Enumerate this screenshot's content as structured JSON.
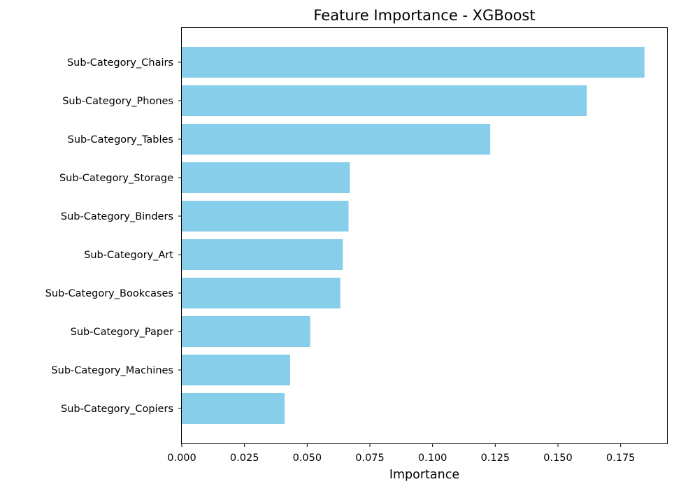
{
  "chart_data": {
    "type": "bar",
    "orientation": "horizontal",
    "title": "Feature Importance - XGBoost",
    "xlabel": "Importance",
    "ylabel": "",
    "xlim": [
      0.0,
      0.1935
    ],
    "grid": false,
    "legend": "none",
    "bar_color": "#87CEEB",
    "categories": [
      "Sub-Category_Chairs",
      "Sub-Category_Phones",
      "Sub-Category_Tables",
      "Sub-Category_Storage",
      "Sub-Category_Binders",
      "Sub-Category_Art",
      "Sub-Category_Bookcases",
      "Sub-Category_Paper",
      "Sub-Category_Machines",
      "Sub-Category_Copiers"
    ],
    "values": [
      0.1845,
      0.1615,
      0.123,
      0.067,
      0.0665,
      0.0642,
      0.0632,
      0.0512,
      0.0432,
      0.041
    ],
    "xticks": [
      0.0,
      0.025,
      0.05,
      0.075,
      0.1,
      0.125,
      0.15,
      0.175
    ],
    "xtick_labels": [
      "0.000",
      "0.025",
      "0.050",
      "0.075",
      "0.100",
      "0.125",
      "0.150",
      "0.175"
    ]
  }
}
